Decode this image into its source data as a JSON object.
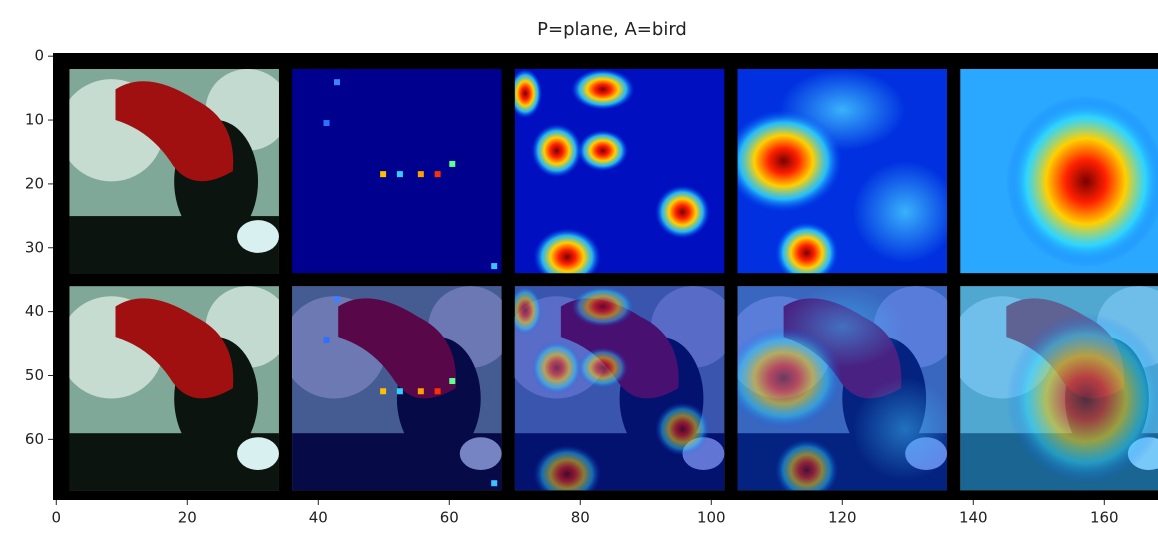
{
  "chart_data": {
    "type": "image",
    "title": "P=plane, A=bird",
    "xlim": [
      -0.5,
      168.2
    ],
    "ylim": [
      69.5,
      -0.5
    ],
    "xticks": [
      0,
      20,
      40,
      60,
      80,
      100,
      120,
      140,
      160
    ],
    "yticks": [
      0,
      10,
      20,
      30,
      40,
      50,
      60
    ]
  }
}
